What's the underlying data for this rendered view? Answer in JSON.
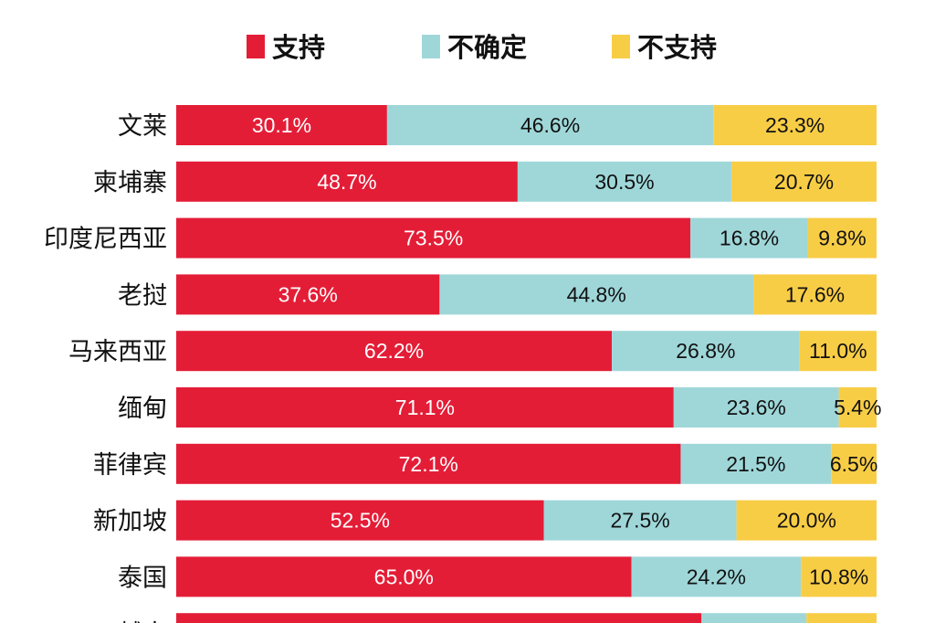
{
  "chart_data": {
    "type": "bar",
    "orientation": "horizontal",
    "stacked": "percent",
    "title": "",
    "xlabel": "",
    "ylabel": "",
    "xlim": [
      0,
      100
    ],
    "legend_position": "top",
    "series": [
      {
        "name": "支持",
        "color": "#e41d37"
      },
      {
        "name": "不确定",
        "color": "#9fd7d9"
      },
      {
        "name": "不支持",
        "color": "#f8cd46"
      }
    ],
    "rows": [
      {
        "label": "文莱",
        "values": [
          30.1,
          46.6,
          23.3
        ],
        "text": [
          "30.1%",
          "46.6%",
          "23.3%"
        ]
      },
      {
        "label": "柬埔寨",
        "values": [
          48.7,
          30.5,
          20.7
        ],
        "text": [
          "48.7%",
          "30.5%",
          "20.7%"
        ]
      },
      {
        "label": "印度尼西亚",
        "values": [
          73.5,
          16.8,
          9.8
        ],
        "text": [
          "73.5%",
          "16.8%",
          "9.8%"
        ]
      },
      {
        "label": "老挝",
        "values": [
          37.6,
          44.8,
          17.6
        ],
        "text": [
          "37.6%",
          "44.8%",
          "17.6%"
        ]
      },
      {
        "label": "马来西亚",
        "values": [
          62.2,
          26.8,
          11.0
        ],
        "text": [
          "62.2%",
          "26.8%",
          "11.0%"
        ]
      },
      {
        "label": "缅甸",
        "values": [
          71.1,
          23.6,
          5.4
        ],
        "text": [
          "71.1%",
          "23.6%",
          "5.4%"
        ]
      },
      {
        "label": "菲律宾",
        "values": [
          72.1,
          21.5,
          6.5
        ],
        "text": [
          "72.1%",
          "21.5%",
          "6.5%"
        ]
      },
      {
        "label": "新加坡",
        "values": [
          52.5,
          27.5,
          20.0
        ],
        "text": [
          "52.5%",
          "27.5%",
          "20.0%"
        ]
      },
      {
        "label": "泰国",
        "values": [
          65.0,
          24.2,
          10.8
        ],
        "text": [
          "65.0%",
          "24.2%",
          "10.8%"
        ]
      },
      {
        "label": "越南",
        "values": [
          75.0,
          15.0,
          10.0
        ],
        "text": [
          "",
          "",
          ""
        ]
      }
    ]
  }
}
